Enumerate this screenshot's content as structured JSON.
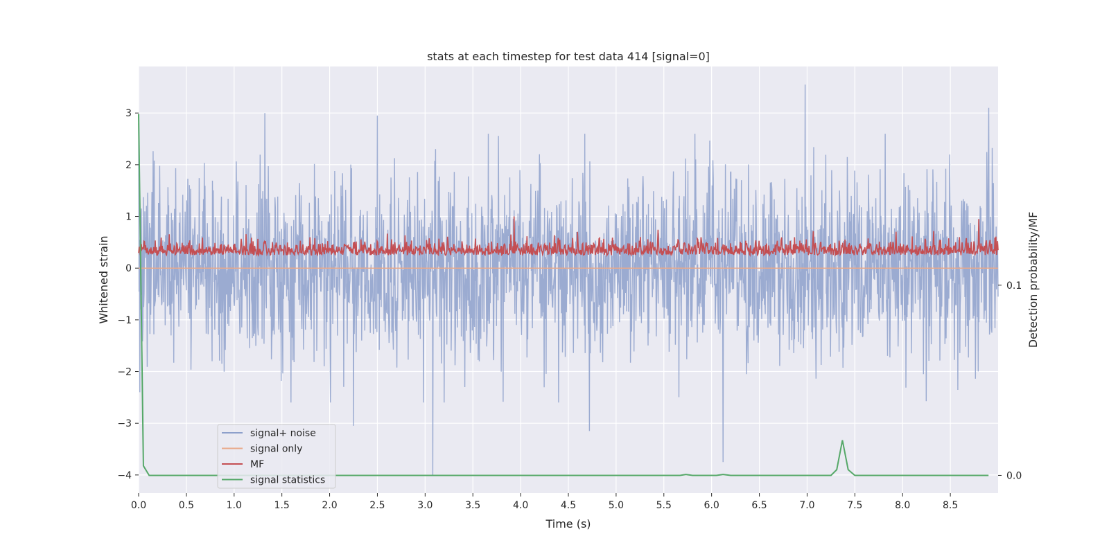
{
  "chart_data": {
    "type": "line",
    "title": "stats at each timestep for test data 414 [signal=0]",
    "xlabel": "Time (s)",
    "ylabel": "Whitened strain",
    "y2label": "Detection probability/MF",
    "xlim": [
      0,
      9.0
    ],
    "ylim": [
      -4.35,
      3.9
    ],
    "y2lim": [
      -0.0093,
      0.215
    ],
    "x_ticks": [
      0.0,
      0.5,
      1.0,
      1.5,
      2.0,
      2.5,
      3.0,
      3.5,
      4.0,
      4.5,
      5.0,
      5.5,
      6.0,
      6.5,
      7.0,
      7.5,
      8.0,
      8.5
    ],
    "x_tick_labels": [
      "0.0",
      "0.5",
      "1.0",
      "1.5",
      "2.0",
      "2.5",
      "3.0",
      "3.5",
      "4.0",
      "4.5",
      "5.0",
      "5.5",
      "6.0",
      "6.5",
      "7.0",
      "7.5",
      "8.0",
      "8.5"
    ],
    "y_ticks": [
      3,
      2,
      1,
      0,
      -1,
      -2,
      -3,
      -4
    ],
    "y_tick_labels": [
      "3",
      "2",
      "1",
      "0",
      "−1",
      "−2",
      "−3",
      "−4"
    ],
    "y2_ticks": [
      0.1,
      0.0
    ],
    "y2_tick_labels": [
      "0.1",
      "0.0"
    ],
    "grid": true,
    "legend_position": "lower-left",
    "colors": {
      "background": "#eaeaf2",
      "grid": "#ffffff",
      "noise": "#8da0cb",
      "signal_only": "#e9a98a",
      "mf": "#c44e52",
      "stats": "#55a868"
    },
    "series": [
      {
        "name": "signal+ noise",
        "axis": "left",
        "description_samples": "dense whitened noise between about -2.5 and 2.5 with occasional spikes",
        "extrema": [
          {
            "x": 1.32,
            "y": 3.0
          },
          {
            "x": 2.5,
            "y": 2.95
          },
          {
            "x": 6.98,
            "y": 3.55
          },
          {
            "x": 8.9,
            "y": 3.1
          },
          {
            "x": 3.08,
            "y": -4.0
          },
          {
            "x": 4.72,
            "y": -3.15
          },
          {
            "x": 6.12,
            "y": -3.75
          },
          {
            "x": 2.25,
            "y": -3.05
          }
        ]
      },
      {
        "name": "signal only",
        "axis": "left",
        "values": "flat at zero"
      },
      {
        "name": "MF",
        "axis": "left",
        "extrema": [
          {
            "x": 3.93,
            "y": 1.0
          },
          {
            "x": 8.8,
            "y": 0.95
          }
        ]
      },
      {
        "name": "signal statistics",
        "axis": "right",
        "x": [
          0.0,
          0.05,
          0.11,
          0.5,
          1.0,
          2.0,
          3.0,
          4.0,
          5.0,
          5.5,
          5.67,
          5.73,
          5.8,
          5.9,
          6.05,
          6.12,
          6.2,
          6.5,
          7.0,
          7.25,
          7.31,
          7.37,
          7.43,
          7.5,
          8.0,
          8.9
        ],
        "values": [
          0.19,
          0.005,
          0.0,
          0.0,
          0.0,
          0.0,
          0.0,
          0.0,
          0.0,
          0.0,
          0.0,
          0.0005,
          0.0,
          0.0,
          0.0,
          0.0005,
          0.0,
          0.0,
          0.0,
          0.0,
          0.003,
          0.0185,
          0.003,
          0.0,
          0.0,
          0.0
        ]
      }
    ]
  }
}
